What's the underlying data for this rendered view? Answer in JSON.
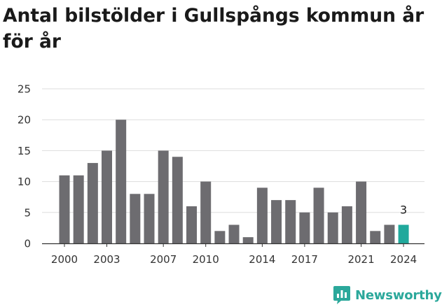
{
  "title": "Antal bilstölder i Gullspångs kommun år för år",
  "brand": {
    "name": "Newsworthy",
    "icon": "newsworthy-logo-icon"
  },
  "colors": {
    "bar": "#6d6c70",
    "highlight": "#20a99c",
    "grid": "#dddddd",
    "axis": "#333333"
  },
  "chart_data": {
    "type": "bar",
    "title": "Antal bilstölder i Gullspångs kommun år för år",
    "xlabel": "",
    "ylabel": "",
    "categories": [
      2000,
      2001,
      2002,
      2003,
      2004,
      2005,
      2006,
      2007,
      2008,
      2009,
      2010,
      2011,
      2012,
      2013,
      2014,
      2015,
      2016,
      2017,
      2018,
      2019,
      2020,
      2021,
      2022,
      2023,
      2024
    ],
    "values": [
      11,
      11,
      13,
      15,
      20,
      8,
      8,
      15,
      14,
      6,
      10,
      2,
      3,
      1,
      9,
      7,
      7,
      5,
      9,
      5,
      6,
      10,
      2,
      3,
      3
    ],
    "ylim": [
      0,
      25
    ],
    "yticks": [
      0,
      5,
      10,
      15,
      20,
      25
    ],
    "xticks": [
      2000,
      2003,
      2007,
      2010,
      2014,
      2017,
      2021,
      2024
    ],
    "highlight": {
      "category": 2024,
      "label": "3"
    },
    "grid": true,
    "legend": "none"
  }
}
